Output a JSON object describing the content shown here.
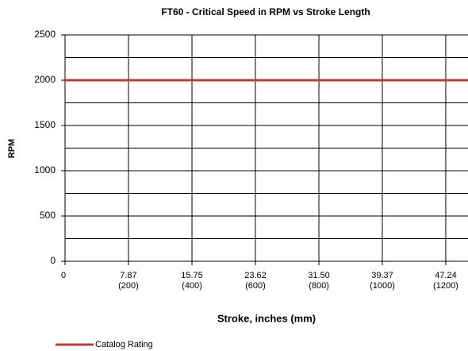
{
  "chart_data": {
    "type": "line",
    "title": "FT60 - Critical Speed in RPM vs Stroke Length",
    "xlabel": "Stroke, inches (mm)",
    "ylabel": "RPM",
    "x": [
      0,
      50
    ],
    "series": [
      {
        "name": "Catalog Rating",
        "color": "#b5413b",
        "values": [
          2000,
          2000
        ]
      }
    ],
    "xlim": [
      0,
      50
    ],
    "xticks": [
      0,
      {
        "value": 7.87,
        "label": "7.87",
        "sublabel": "(200)"
      },
      {
        "value": 15.75,
        "label": "15.75",
        "sublabel": "(400)"
      },
      {
        "value": 23.62,
        "label": "23.62",
        "sublabel": "(600)"
      },
      {
        "value": 31.5,
        "label": "31.50",
        "sublabel": "(800)"
      },
      {
        "value": 39.37,
        "label": "39.37",
        "sublabel": "(1000)"
      },
      {
        "value": 47.24,
        "label": "47.24",
        "sublabel": "(1200)"
      }
    ],
    "ylim": [
      0,
      2500
    ],
    "yticks": [
      0,
      500,
      1000,
      1500,
      2000,
      2500
    ],
    "ygrid": [
      250,
      750,
      1250,
      1750,
      2250
    ],
    "grid": true,
    "legend": "bottom-left"
  }
}
